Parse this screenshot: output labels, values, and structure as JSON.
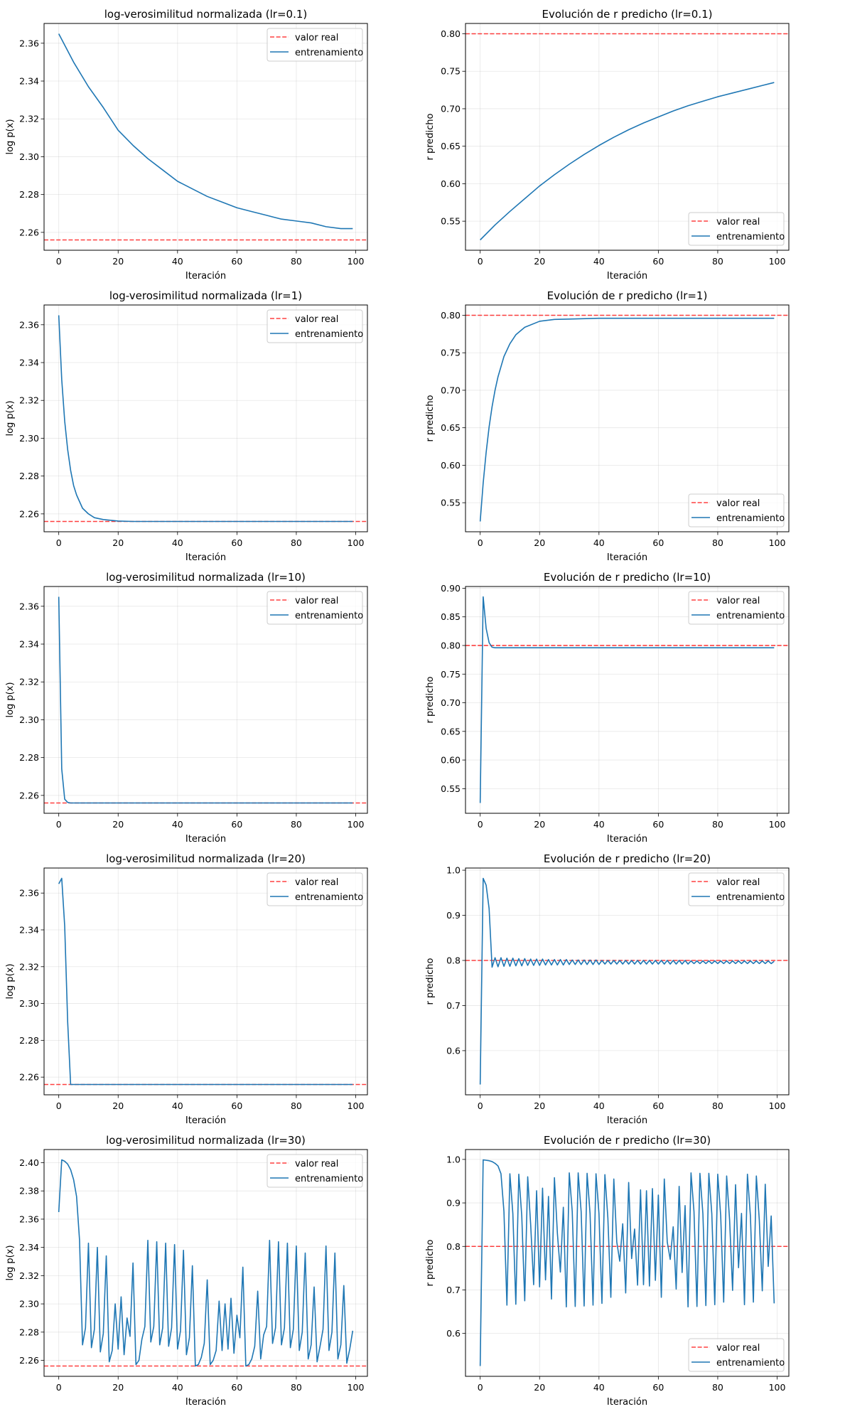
{
  "figure": {
    "legend_labels": {
      "real": "valor real",
      "train": "entrenamiento"
    }
  },
  "colors": {
    "train": "#1f77b4",
    "real": "#ff0000",
    "grid": "#b0b0b0"
  },
  "chart_data": [
    {
      "type": "line",
      "title": "log-verosimilitud normalizada (lr=0.1)",
      "xlabel": "Iteración",
      "ylabel": "log p(x)",
      "legend_position": "upper-right",
      "xlim": [
        -4.95,
        103.95
      ],
      "xticks": [
        0,
        20,
        40,
        60,
        80,
        100
      ],
      "xtick_labels": [
        "0",
        "20",
        "40",
        "60",
        "80",
        "100"
      ],
      "yticks": [
        2.26,
        2.28,
        2.3,
        2.32,
        2.34,
        2.36
      ],
      "ytick_labels": [
        "2.26",
        "2.28",
        "2.30",
        "2.32",
        "2.34",
        "2.36"
      ],
      "grid": true,
      "series": [
        {
          "name": "valor real",
          "kind": "hline",
          "value": 2.256
        },
        {
          "name": "entrenamiento",
          "x": [
            0,
            5,
            10,
            15,
            20,
            25,
            30,
            35,
            40,
            45,
            50,
            55,
            60,
            65,
            70,
            75,
            80,
            85,
            90,
            95,
            99
          ],
          "values": [
            2.365,
            2.35,
            2.337,
            2.326,
            2.314,
            2.306,
            2.299,
            2.293,
            2.287,
            2.283,
            2.279,
            2.276,
            2.273,
            2.271,
            2.269,
            2.267,
            2.266,
            2.265,
            2.263,
            2.262,
            2.262
          ]
        }
      ]
    },
    {
      "type": "line",
      "title": "Evolución de r predicho (lr=0.1)",
      "xlabel": "Iteración",
      "ylabel": "r predicho",
      "legend_position": "lower-right",
      "xlim": [
        -4.95,
        103.95
      ],
      "xticks": [
        0,
        20,
        40,
        60,
        80,
        100
      ],
      "xtick_labels": [
        "0",
        "20",
        "40",
        "60",
        "80",
        "100"
      ],
      "yticks": [
        0.55,
        0.6,
        0.65,
        0.7,
        0.75,
        0.8
      ],
      "ytick_labels": [
        "0.55",
        "0.60",
        "0.65",
        "0.70",
        "0.75",
        "0.80"
      ],
      "grid": true,
      "series": [
        {
          "name": "valor real",
          "kind": "hline",
          "value": 0.8
        },
        {
          "name": "entrenamiento",
          "x": [
            0,
            5,
            10,
            15,
            20,
            25,
            30,
            35,
            40,
            45,
            50,
            55,
            60,
            65,
            70,
            75,
            80,
            85,
            90,
            95,
            99
          ],
          "values": [
            0.525,
            0.545,
            0.563,
            0.58,
            0.597,
            0.612,
            0.626,
            0.639,
            0.651,
            0.662,
            0.672,
            0.681,
            0.689,
            0.697,
            0.704,
            0.71,
            0.716,
            0.721,
            0.726,
            0.731,
            0.735
          ]
        }
      ]
    },
    {
      "type": "line",
      "title": "log-verosimilitud normalizada (lr=1)",
      "xlabel": "Iteración",
      "ylabel": "log p(x)",
      "legend_position": "upper-right",
      "xlim": [
        -4.95,
        103.95
      ],
      "xticks": [
        0,
        20,
        40,
        60,
        80,
        100
      ],
      "xtick_labels": [
        "0",
        "20",
        "40",
        "60",
        "80",
        "100"
      ],
      "yticks": [
        2.26,
        2.28,
        2.3,
        2.32,
        2.34,
        2.36
      ],
      "ytick_labels": [
        "2.26",
        "2.28",
        "2.30",
        "2.32",
        "2.34",
        "2.36"
      ],
      "grid": true,
      "series": [
        {
          "name": "valor real",
          "kind": "hline",
          "value": 2.256
        },
        {
          "name": "entrenamiento",
          "x": [
            0,
            1,
            2,
            3,
            4,
            5,
            6,
            8,
            10,
            12,
            15,
            20,
            25,
            30,
            40,
            50,
            60,
            70,
            80,
            90,
            99
          ],
          "values": [
            2.365,
            2.331,
            2.309,
            2.294,
            2.283,
            2.275,
            2.27,
            2.263,
            2.26,
            2.258,
            2.257,
            2.2562,
            2.256,
            2.256,
            2.256,
            2.256,
            2.256,
            2.256,
            2.256,
            2.256,
            2.256
          ]
        }
      ]
    },
    {
      "type": "line",
      "title": "Evolución de r predicho (lr=1)",
      "xlabel": "Iteración",
      "ylabel": "r predicho",
      "legend_position": "lower-right",
      "xlim": [
        -4.95,
        103.95
      ],
      "xticks": [
        0,
        20,
        40,
        60,
        80,
        100
      ],
      "xtick_labels": [
        "0",
        "20",
        "40",
        "60",
        "80",
        "100"
      ],
      "yticks": [
        0.55,
        0.6,
        0.65,
        0.7,
        0.75,
        0.8
      ],
      "ytick_labels": [
        "0.55",
        "0.60",
        "0.65",
        "0.70",
        "0.75",
        "0.80"
      ],
      "grid": true,
      "series": [
        {
          "name": "valor real",
          "kind": "hline",
          "value": 0.8
        },
        {
          "name": "entrenamiento",
          "x": [
            0,
            1,
            2,
            3,
            4,
            5,
            6,
            8,
            10,
            12,
            15,
            20,
            25,
            30,
            40,
            50,
            60,
            70,
            80,
            90,
            99
          ],
          "values": [
            0.525,
            0.576,
            0.617,
            0.651,
            0.678,
            0.7,
            0.718,
            0.745,
            0.762,
            0.774,
            0.784,
            0.792,
            0.7945,
            0.795,
            0.796,
            0.796,
            0.796,
            0.796,
            0.796,
            0.796,
            0.796
          ]
        }
      ]
    },
    {
      "type": "line",
      "title": "log-verosimilitud normalizada (lr=10)",
      "xlabel": "Iteración",
      "ylabel": "log p(x)",
      "legend_position": "upper-right",
      "xlim": [
        -4.95,
        103.95
      ],
      "xticks": [
        0,
        20,
        40,
        60,
        80,
        100
      ],
      "xtick_labels": [
        "0",
        "20",
        "40",
        "60",
        "80",
        "100"
      ],
      "yticks": [
        2.26,
        2.28,
        2.3,
        2.32,
        2.34,
        2.36
      ],
      "ytick_labels": [
        "2.26",
        "2.28",
        "2.30",
        "2.32",
        "2.34",
        "2.36"
      ],
      "grid": true,
      "series": [
        {
          "name": "valor real",
          "kind": "hline",
          "value": 2.256
        },
        {
          "name": "entrenamiento",
          "x": [
            0,
            1,
            2,
            3,
            4,
            10,
            20,
            30,
            40,
            50,
            60,
            70,
            80,
            90,
            99
          ],
          "values": [
            2.365,
            2.274,
            2.258,
            2.2563,
            2.256,
            2.256,
            2.256,
            2.256,
            2.256,
            2.256,
            2.256,
            2.256,
            2.256,
            2.256,
            2.256
          ]
        }
      ]
    },
    {
      "type": "line",
      "title": "Evolución de r predicho (lr=10)",
      "xlabel": "Iteración",
      "ylabel": "r predicho",
      "legend_position": "upper-right",
      "xlim": [
        -4.95,
        103.95
      ],
      "xticks": [
        0,
        20,
        40,
        60,
        80,
        100
      ],
      "xtick_labels": [
        "0",
        "20",
        "40",
        "60",
        "80",
        "100"
      ],
      "yticks": [
        0.55,
        0.6,
        0.65,
        0.7,
        0.75,
        0.8,
        0.85,
        0.9
      ],
      "ytick_labels": [
        "0.55",
        "0.60",
        "0.65",
        "0.70",
        "0.75",
        "0.80",
        "0.85",
        "0.90"
      ],
      "grid": true,
      "series": [
        {
          "name": "valor real",
          "kind": "hline",
          "value": 0.8
        },
        {
          "name": "entrenamiento",
          "x": [
            0,
            1,
            2,
            3,
            4,
            5,
            10,
            20,
            30,
            40,
            50,
            60,
            70,
            80,
            90,
            99
          ],
          "values": [
            0.525,
            0.885,
            0.83,
            0.805,
            0.797,
            0.796,
            0.796,
            0.796,
            0.796,
            0.796,
            0.796,
            0.796,
            0.796,
            0.796,
            0.796,
            0.796
          ]
        }
      ]
    },
    {
      "type": "line",
      "title": "log-verosimilitud normalizada (lr=20)",
      "xlabel": "Iteración",
      "ylabel": "log p(x)",
      "legend_position": "upper-right",
      "xlim": [
        -4.95,
        103.95
      ],
      "xticks": [
        0,
        20,
        40,
        60,
        80,
        100
      ],
      "xtick_labels": [
        "0",
        "20",
        "40",
        "60",
        "80",
        "100"
      ],
      "yticks": [
        2.26,
        2.28,
        2.3,
        2.32,
        2.34,
        2.36
      ],
      "ytick_labels": [
        "2.26",
        "2.28",
        "2.30",
        "2.32",
        "2.34",
        "2.36"
      ],
      "grid": true,
      "series": [
        {
          "name": "valor real",
          "kind": "hline",
          "value": 2.256
        },
        {
          "name": "entrenamiento",
          "x": [
            0,
            1,
            2,
            3,
            4,
            10,
            20,
            30,
            40,
            50,
            60,
            70,
            80,
            90,
            99
          ],
          "values": [
            2.365,
            2.368,
            2.342,
            2.29,
            2.256,
            2.256,
            2.256,
            2.256,
            2.256,
            2.256,
            2.256,
            2.256,
            2.256,
            2.256,
            2.256
          ]
        }
      ]
    },
    {
      "type": "line",
      "title": "Evolución de r predicho (lr=20)",
      "xlabel": "Iteración",
      "ylabel": "r predicho",
      "legend_position": "upper-right",
      "xlim": [
        -4.95,
        103.95
      ],
      "xticks": [
        0,
        20,
        40,
        60,
        80,
        100
      ],
      "xtick_labels": [
        "0",
        "20",
        "40",
        "60",
        "80",
        "100"
      ],
      "yticks": [
        0.6,
        0.7,
        0.8,
        0.9,
        1.0
      ],
      "ytick_labels": [
        "0.6",
        "0.7",
        "0.8",
        "0.9",
        "1.0"
      ],
      "grid": true,
      "series": [
        {
          "name": "valor real",
          "kind": "hline",
          "value": 0.8
        },
        {
          "name": "entrenamiento",
          "values": [
            0.525,
            0.982,
            0.967,
            0.915,
            0.785,
            0.806,
            0.786,
            0.806,
            0.787,
            0.805,
            0.787,
            0.805,
            0.788,
            0.804,
            0.788,
            0.804,
            0.789,
            0.803,
            0.789,
            0.803,
            0.789,
            0.803,
            0.79,
            0.802,
            0.79,
            0.802,
            0.79,
            0.802,
            0.79,
            0.802,
            0.791,
            0.801,
            0.791,
            0.801,
            0.791,
            0.801,
            0.791,
            0.801,
            0.791,
            0.801,
            0.791,
            0.8,
            0.792,
            0.8,
            0.792,
            0.8,
            0.792,
            0.8,
            0.792,
            0.8,
            0.792,
            0.8,
            0.792,
            0.8,
            0.792,
            0.8,
            0.792,
            0.8,
            0.792,
            0.8,
            0.792,
            0.8,
            0.792,
            0.8,
            0.792,
            0.8,
            0.792,
            0.8,
            0.792,
            0.8,
            0.792,
            0.799,
            0.793,
            0.799,
            0.793,
            0.799,
            0.793,
            0.799,
            0.793,
            0.799,
            0.793,
            0.799,
            0.793,
            0.799,
            0.793,
            0.799,
            0.793,
            0.799,
            0.793,
            0.799,
            0.793,
            0.799,
            0.793,
            0.799,
            0.793,
            0.799,
            0.793,
            0.799,
            0.793,
            0.798
          ]
        }
      ]
    },
    {
      "type": "line",
      "title": "log-verosimilitud normalizada (lr=30)",
      "xlabel": "Iteración",
      "ylabel": "log p(x)",
      "legend_position": "upper-right",
      "xlim": [
        -4.95,
        103.95
      ],
      "xticks": [
        0,
        20,
        40,
        60,
        80,
        100
      ],
      "xtick_labels": [
        "0",
        "20",
        "40",
        "60",
        "80",
        "100"
      ],
      "yticks": [
        2.26,
        2.28,
        2.3,
        2.32,
        2.34,
        2.36,
        2.38,
        2.4
      ],
      "ytick_labels": [
        "2.26",
        "2.28",
        "2.30",
        "2.32",
        "2.34",
        "2.36",
        "2.38",
        "2.40"
      ],
      "grid": true,
      "series": [
        {
          "name": "valor real",
          "kind": "hline",
          "value": 2.256
        },
        {
          "name": "entrenamiento",
          "values": [
            2.365,
            2.402,
            2.401,
            2.399,
            2.395,
            2.388,
            2.376,
            2.345,
            2.271,
            2.283,
            2.343,
            2.269,
            2.282,
            2.34,
            2.266,
            2.279,
            2.334,
            2.259,
            2.267,
            2.3,
            2.268,
            2.305,
            2.264,
            2.29,
            2.277,
            2.329,
            2.257,
            2.26,
            2.275,
            2.284,
            2.345,
            2.273,
            2.284,
            2.344,
            2.271,
            2.283,
            2.343,
            2.27,
            2.283,
            2.342,
            2.268,
            2.281,
            2.338,
            2.264,
            2.276,
            2.327,
            2.256,
            2.257,
            2.262,
            2.272,
            2.317,
            2.257,
            2.26,
            2.267,
            2.302,
            2.267,
            2.3,
            2.268,
            2.304,
            2.265,
            2.292,
            2.276,
            2.326,
            2.256,
            2.257,
            2.261,
            2.27,
            2.309,
            2.261,
            2.278,
            2.284,
            2.345,
            2.272,
            2.283,
            2.344,
            2.271,
            2.283,
            2.343,
            2.269,
            2.282,
            2.341,
            2.267,
            2.28,
            2.336,
            2.261,
            2.271,
            2.312,
            2.259,
            2.27,
            2.282,
            2.341,
            2.267,
            2.28,
            2.336,
            2.261,
            2.271,
            2.313,
            2.258,
            2.268,
            2.281
          ]
        }
      ]
    },
    {
      "type": "line",
      "title": "Evolución de r predicho (lr=30)",
      "xlabel": "Iteración",
      "ylabel": "r predicho",
      "legend_position": "lower-right",
      "xlim": [
        -4.95,
        103.95
      ],
      "xticks": [
        0,
        20,
        40,
        60,
        80,
        100
      ],
      "xtick_labels": [
        "0",
        "20",
        "40",
        "60",
        "80",
        "100"
      ],
      "yticks": [
        0.6,
        0.7,
        0.8,
        0.9,
        1.0
      ],
      "ytick_labels": [
        "0.6",
        "0.7",
        "0.8",
        "0.9",
        "1.0"
      ],
      "grid": true,
      "series": [
        {
          "name": "valor real",
          "kind": "hline",
          "value": 0.8
        },
        {
          "name": "entrenamiento",
          "values": [
            0.525,
            0.999,
            0.998,
            0.997,
            0.995,
            0.991,
            0.985,
            0.967,
            0.88,
            0.665,
            0.967,
            0.875,
            0.667,
            0.966,
            0.87,
            0.675,
            0.96,
            0.85,
            0.712,
            0.928,
            0.707,
            0.934,
            0.723,
            0.915,
            0.679,
            0.958,
            0.83,
            0.741,
            0.89,
            0.661,
            0.969,
            0.88,
            0.662,
            0.969,
            0.88,
            0.663,
            0.968,
            0.875,
            0.665,
            0.967,
            0.875,
            0.669,
            0.965,
            0.865,
            0.683,
            0.955,
            0.81,
            0.766,
            0.852,
            0.693,
            0.947,
            0.772,
            0.84,
            0.711,
            0.93,
            0.712,
            0.928,
            0.709,
            0.933,
            0.722,
            0.918,
            0.683,
            0.955,
            0.81,
            0.77,
            0.845,
            0.702,
            0.938,
            0.74,
            0.894,
            0.661,
            0.969,
            0.88,
            0.662,
            0.968,
            0.875,
            0.664,
            0.968,
            0.875,
            0.666,
            0.966,
            0.87,
            0.672,
            0.962,
            0.86,
            0.699,
            0.942,
            0.751,
            0.876,
            0.666,
            0.966,
            0.87,
            0.672,
            0.962,
            0.86,
            0.698,
            0.943,
            0.754,
            0.87,
            0.669
          ]
        }
      ]
    }
  ]
}
